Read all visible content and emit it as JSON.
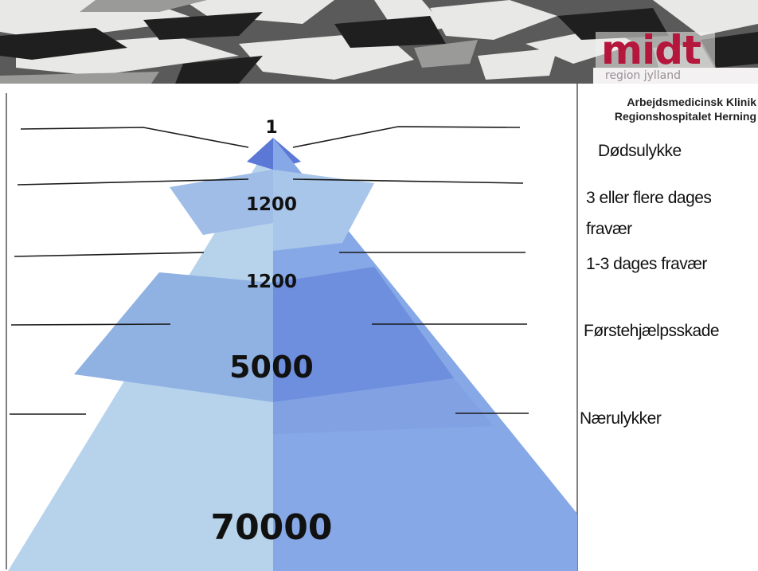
{
  "header": {
    "logo_word": "midt",
    "logo_subtitle": "region    jylland",
    "clinic_line_1": "Arbejdsmedicinsk Klinik",
    "clinic_line_2": "Regionshospitalet Herning",
    "colors": {
      "logo": "#b5163c"
    }
  },
  "pyramid": {
    "numbers": [
      "1",
      "1200",
      "1200",
      "5000",
      "70000"
    ],
    "colors": {
      "tier_light": "#b7d3ec",
      "tier_mid": "#8fb2e2",
      "tier_dark": "#6d8fde",
      "apex": "#5b78d6"
    }
  },
  "labels": {
    "dodsulykke": "Dødsulykke",
    "fravaer3_line1": "3 eller flere dages",
    "fravaer3_line2": "fravær",
    "fravaer1_3": "1-3 dages fravær",
    "forstehjaelp": "Førstehjælpsskade",
    "naerulykker": "Nærulykker"
  }
}
